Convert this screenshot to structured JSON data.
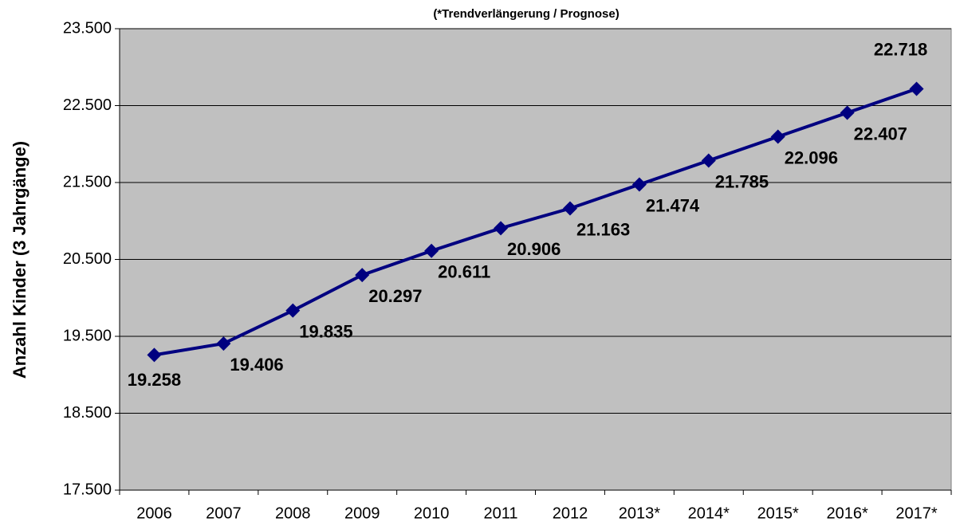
{
  "chart_data": {
    "type": "line",
    "subtitle": "(*Trendverlängerung / Prognose)",
    "y_label": "Anzahl Kinder (3 Jahrgänge)",
    "categories": [
      "2006",
      "2007",
      "2008",
      "2009",
      "2010",
      "2011",
      "2012",
      "2013*",
      "2014*",
      "2015*",
      "2016*",
      "2017*"
    ],
    "series": [
      {
        "name": "Anzahl Kinder",
        "color": "#000080",
        "values": [
          19258,
          19406,
          19835,
          20297,
          20611,
          20906,
          21163,
          21474,
          21785,
          22096,
          22407,
          22718
        ],
        "value_labels": [
          "19.258",
          "19.406",
          "19.835",
          "20.297",
          "20.611",
          "20.906",
          "21.163",
          "21.474",
          "21.785",
          "22.096",
          "22.407",
          "22.718"
        ]
      }
    ],
    "ylim": [
      17500,
      23500
    ],
    "yticks": [
      {
        "value": 17500,
        "label": "17.500"
      },
      {
        "value": 18500,
        "label": "18.500"
      },
      {
        "value": 19500,
        "label": "19.500"
      },
      {
        "value": 20500,
        "label": "20.500"
      },
      {
        "value": 21500,
        "label": "21.500"
      },
      {
        "value": 22500,
        "label": "22.500"
      },
      {
        "value": 23500,
        "label": "23.500"
      }
    ],
    "grid": true,
    "plot_background": "#c0c0c0"
  }
}
